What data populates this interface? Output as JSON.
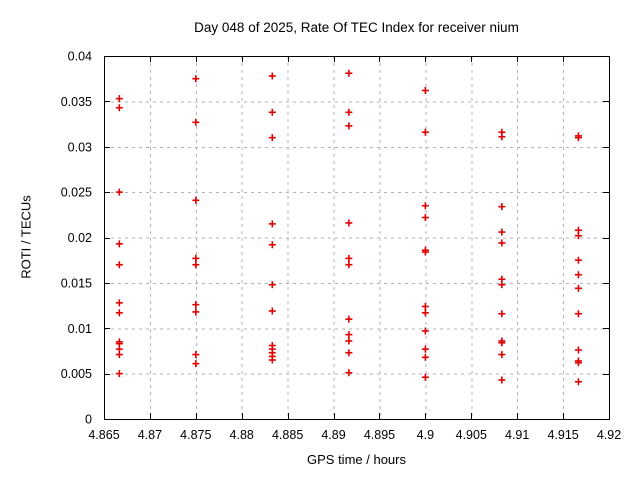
{
  "title": "Day 048 of 2025, Rate Of TEC Index for receiver nium",
  "chart_data": {
    "type": "scatter",
    "title": "Day 048 of 2025, Rate Of TEC Index for receiver nium",
    "xlabel": "GPS time / hours",
    "ylabel": "ROTI / TECUs",
    "xlim": [
      4.865,
      4.92
    ],
    "ylim": [
      0,
      0.04
    ],
    "xticks": [
      4.865,
      4.87,
      4.875,
      4.88,
      4.885,
      4.89,
      4.895,
      4.9,
      4.905,
      4.91,
      4.915,
      4.92
    ],
    "xtick_labels": [
      "4.865",
      "4.87",
      "4.875",
      "4.88",
      "4.885",
      "4.89",
      "4.895",
      "4.9",
      "4.905",
      "4.91",
      "4.915",
      "4.92"
    ],
    "yticks": [
      0,
      0.005,
      0.01,
      0.015,
      0.02,
      0.025,
      0.03,
      0.035,
      0.04
    ],
    "ytick_labels": [
      "0",
      "0.005",
      "0.01",
      "0.015",
      "0.02",
      "0.025",
      "0.03",
      "0.035",
      "0.04"
    ],
    "grid": true,
    "legend": "none",
    "marker": "plus",
    "marker_color": "#e00000",
    "grid_color": "#b3b3b3",
    "frame_color": "#000000",
    "series": [
      {
        "name": "ROTI",
        "columns": [
          {
            "x": 4.86667,
            "y": [
              0.0353,
              0.0343,
              0.025,
              0.0193,
              0.017,
              0.0128,
              0.0117,
              0.0085,
              0.0083,
              0.0077,
              0.0071,
              0.005
            ]
          },
          {
            "x": 4.875,
            "y": [
              0.0375,
              0.0327,
              0.0241,
              0.0177,
              0.017,
              0.0126,
              0.0118,
              0.0071,
              0.0061
            ]
          },
          {
            "x": 4.88333,
            "y": [
              0.0378,
              0.0338,
              0.031,
              0.0215,
              0.0192,
              0.0148,
              0.0119,
              0.0081,
              0.0077,
              0.0073,
              0.0069,
              0.0065
            ]
          },
          {
            "x": 4.89167,
            "y": [
              0.0381,
              0.0338,
              0.0323,
              0.0216,
              0.0177,
              0.017,
              0.011,
              0.0093,
              0.0086,
              0.0073,
              0.0051
            ]
          },
          {
            "x": 4.9,
            "y": [
              0.0362,
              0.0316,
              0.0235,
              0.0222,
              0.0186,
              0.0184,
              0.0124,
              0.0117,
              0.0097,
              0.0077,
              0.0068,
              0.0046
            ]
          },
          {
            "x": 4.90833,
            "y": [
              0.0316,
              0.0311,
              0.0234,
              0.0206,
              0.0194,
              0.0154,
              0.0148,
              0.0116,
              0.0086,
              0.0084,
              0.0071,
              0.0043
            ]
          },
          {
            "x": 4.91667,
            "y": [
              0.0312,
              0.031,
              0.0208,
              0.0202,
              0.0175,
              0.0159,
              0.0144,
              0.0116,
              0.0076,
              0.0064,
              0.0062,
              0.0041
            ]
          }
        ]
      }
    ]
  }
}
